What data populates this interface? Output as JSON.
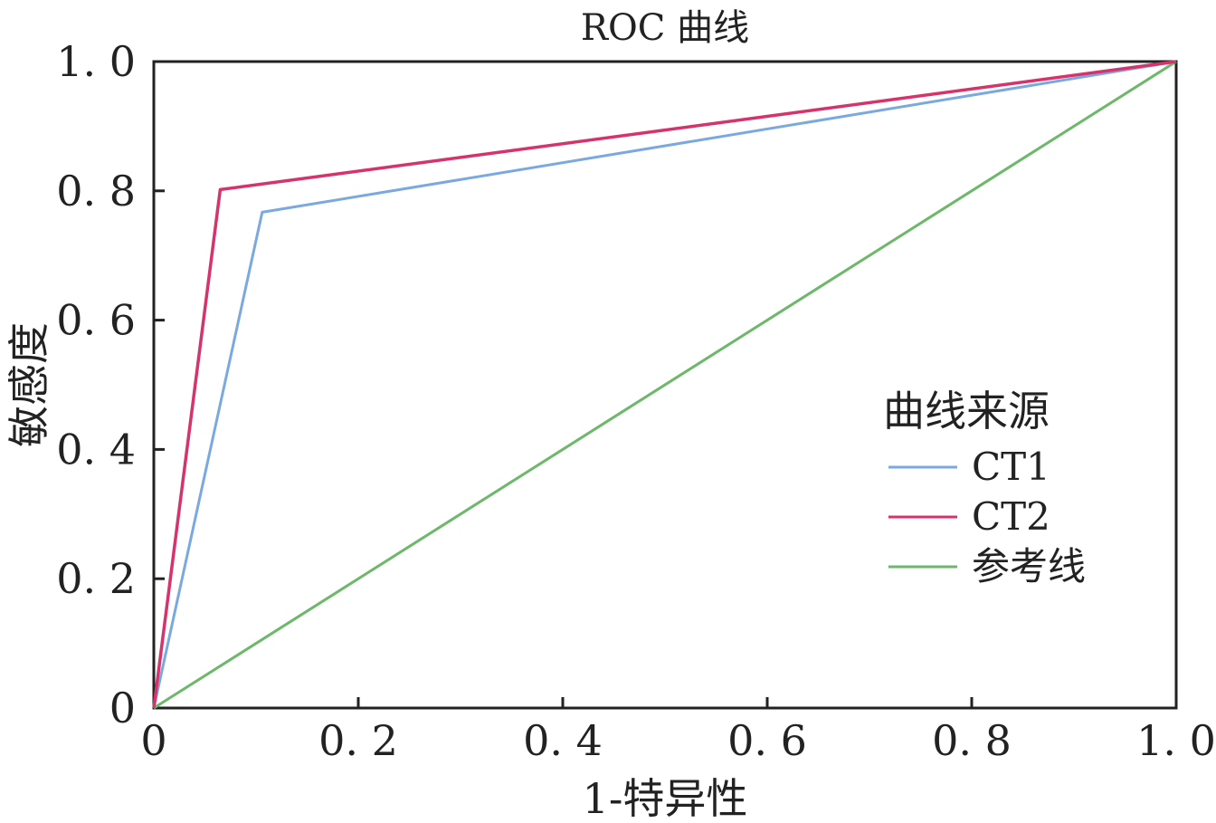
{
  "chart_data": {
    "type": "line",
    "title": "ROC 曲线",
    "xlabel": "1-特异性",
    "ylabel": "敏感度",
    "xlim": [
      0,
      1
    ],
    "ylim": [
      0,
      1
    ],
    "x_ticks": [
      0,
      0.2,
      0.4,
      0.6,
      0.8,
      1.0
    ],
    "x_tick_labels": [
      "0",
      "0. 2",
      "0. 4",
      "0. 6",
      "0. 8",
      "1. 0"
    ],
    "y_ticks": [
      0,
      0.2,
      0.4,
      0.6,
      0.8,
      1.0
    ],
    "y_tick_labels": [
      "0",
      "0. 2",
      "0. 4",
      "0. 6",
      "0. 8",
      "1. 0"
    ],
    "grid": false,
    "legend": {
      "title": "曲线来源",
      "position": "right-middle"
    },
    "series": [
      {
        "name": "CT1",
        "color": "#7aa9e0",
        "x": [
          0,
          0.106,
          1.0
        ],
        "y": [
          0,
          0.767,
          1.0
        ]
      },
      {
        "name": "CT2",
        "color": "#d6336c",
        "x": [
          0,
          0.065,
          1.0
        ],
        "y": [
          0,
          0.802,
          1.0
        ]
      },
      {
        "name": "参考线",
        "color": "#6db86a",
        "x": [
          0,
          1.0
        ],
        "y": [
          0,
          1.0
        ]
      }
    ]
  }
}
